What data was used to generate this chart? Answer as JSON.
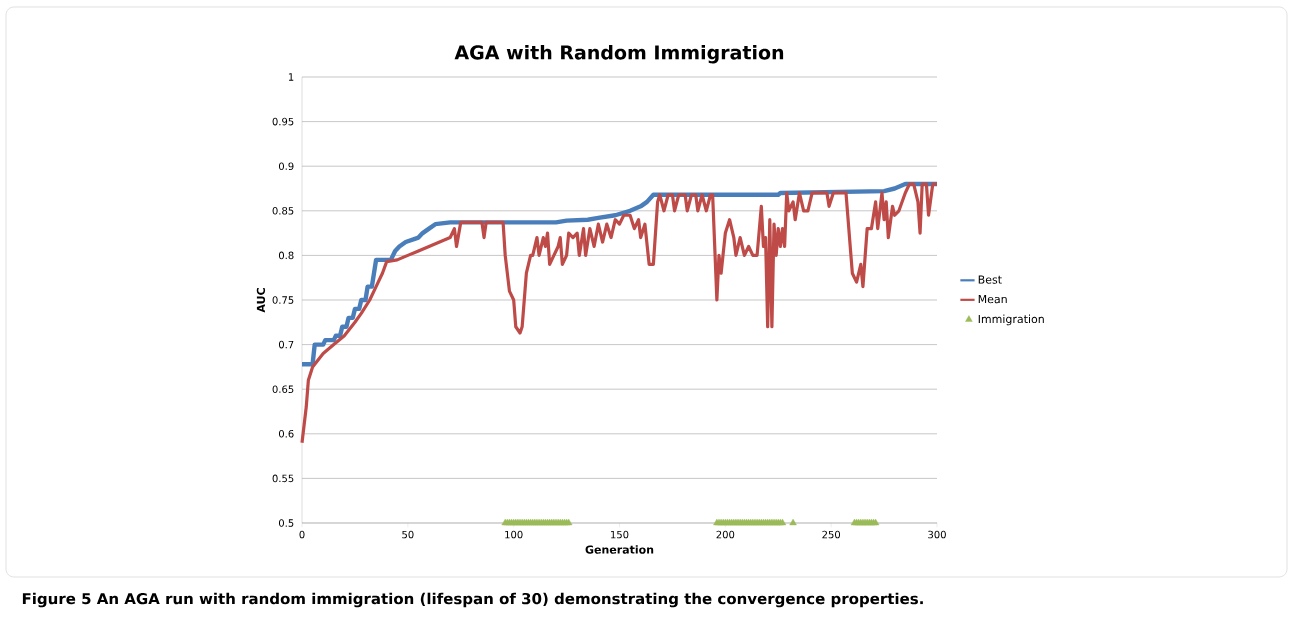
{
  "chart_data": {
    "type": "line",
    "title": "AGA with Random Immigration",
    "xlabel": "Generation",
    "ylabel": "AUC",
    "annotations": [
      "Figure 5 An AGA run with random immigration (lifespan of 30) demonstrating the convergence properties."
    ],
    "xlim": [
      0,
      300
    ],
    "xticks": [
      0,
      50,
      100,
      150,
      200,
      250,
      300
    ],
    "ylim": [
      0.5,
      1
    ],
    "yticks": [
      0.5,
      0.55,
      0.6,
      0.65,
      0.7,
      0.75,
      0.8,
      0.85,
      0.9,
      0.95,
      1
    ],
    "grid": "y",
    "legend": "right",
    "line_style": "solid",
    "marker": "none",
    "series": [
      {
        "name": "Best",
        "color": "#4a7ebb",
        "x": [
          0,
          5,
          6,
          10,
          11,
          15,
          16,
          18,
          19,
          21,
          22,
          24,
          25,
          27,
          28,
          30,
          31,
          33,
          34,
          35,
          42,
          43,
          44,
          46,
          49,
          55,
          57,
          60,
          63,
          70,
          120,
          125,
          135,
          140,
          148,
          155,
          160,
          163,
          166,
          225,
          226,
          275,
          280,
          285,
          300
        ],
        "values": [
          0.678,
          0.678,
          0.7,
          0.7,
          0.705,
          0.705,
          0.71,
          0.71,
          0.72,
          0.72,
          0.73,
          0.73,
          0.74,
          0.74,
          0.75,
          0.75,
          0.765,
          0.765,
          0.78,
          0.795,
          0.795,
          0.8,
          0.805,
          0.81,
          0.815,
          0.82,
          0.825,
          0.83,
          0.835,
          0.837,
          0.837,
          0.839,
          0.84,
          0.842,
          0.845,
          0.85,
          0.855,
          0.86,
          0.868,
          0.868,
          0.87,
          0.872,
          0.875,
          0.88,
          0.88
        ]
      },
      {
        "name": "Mean",
        "color": "#be4b48",
        "x": [
          0,
          2,
          3,
          5,
          10,
          15,
          20,
          25,
          28,
          32,
          35,
          38,
          40,
          45,
          50,
          55,
          60,
          65,
          70,
          72,
          73,
          75,
          85,
          86,
          87,
          95,
          96,
          98,
          100,
          101,
          103,
          104,
          106,
          108,
          109,
          111,
          112,
          114,
          115,
          116,
          117,
          119,
          121,
          122,
          123,
          125,
          126,
          128,
          130,
          131,
          133,
          134,
          136,
          138,
          140,
          142,
          144,
          146,
          148,
          150,
          152,
          155,
          157,
          159,
          160,
          162,
          164,
          166,
          168,
          169,
          171,
          173,
          175,
          176,
          178,
          181,
          182,
          184,
          186,
          187,
          189,
          191,
          193,
          194,
          196,
          197,
          198,
          200,
          202,
          204,
          205,
          207,
          209,
          211,
          213,
          215,
          217,
          218,
          219,
          220,
          221,
          222,
          223,
          224,
          225,
          226,
          227,
          228,
          229,
          230,
          232,
          233,
          235,
          237,
          239,
          241,
          248,
          249,
          251,
          257,
          260,
          262,
          264,
          265,
          267,
          269,
          271,
          272,
          274,
          275,
          276,
          277,
          279,
          280,
          282,
          285,
          287,
          289,
          291,
          292,
          293,
          295,
          296,
          298,
          300
        ],
        "values": [
          0.59,
          0.63,
          0.66,
          0.675,
          0.69,
          0.7,
          0.71,
          0.725,
          0.735,
          0.75,
          0.765,
          0.78,
          0.793,
          0.795,
          0.8,
          0.805,
          0.81,
          0.815,
          0.82,
          0.83,
          0.81,
          0.837,
          0.837,
          0.82,
          0.837,
          0.837,
          0.8,
          0.76,
          0.75,
          0.72,
          0.713,
          0.72,
          0.78,
          0.8,
          0.8,
          0.82,
          0.8,
          0.82,
          0.81,
          0.825,
          0.79,
          0.8,
          0.81,
          0.82,
          0.79,
          0.8,
          0.825,
          0.82,
          0.825,
          0.8,
          0.83,
          0.8,
          0.83,
          0.81,
          0.835,
          0.815,
          0.835,
          0.82,
          0.84,
          0.835,
          0.845,
          0.845,
          0.83,
          0.84,
          0.82,
          0.835,
          0.79,
          0.79,
          0.86,
          0.868,
          0.85,
          0.868,
          0.868,
          0.85,
          0.868,
          0.868,
          0.85,
          0.868,
          0.868,
          0.85,
          0.868,
          0.85,
          0.868,
          0.868,
          0.75,
          0.8,
          0.78,
          0.825,
          0.84,
          0.82,
          0.8,
          0.82,
          0.8,
          0.81,
          0.8,
          0.8,
          0.855,
          0.81,
          0.82,
          0.72,
          0.84,
          0.72,
          0.835,
          0.8,
          0.83,
          0.81,
          0.83,
          0.81,
          0.87,
          0.85,
          0.86,
          0.84,
          0.87,
          0.85,
          0.85,
          0.87,
          0.87,
          0.855,
          0.87,
          0.87,
          0.78,
          0.77,
          0.79,
          0.765,
          0.83,
          0.83,
          0.86,
          0.83,
          0.87,
          0.84,
          0.86,
          0.82,
          0.855,
          0.845,
          0.85,
          0.87,
          0.88,
          0.88,
          0.86,
          0.825,
          0.88,
          0.88,
          0.845,
          0.88,
          0.88
        ]
      },
      {
        "name": "Immigration",
        "color": "#9bbb59",
        "type": "scatter",
        "marker": "triangle",
        "x": [
          96,
          97,
          98,
          99,
          100,
          101,
          102,
          103,
          104,
          105,
          106,
          107,
          108,
          109,
          110,
          111,
          112,
          113,
          114,
          115,
          116,
          117,
          118,
          119,
          120,
          121,
          122,
          123,
          124,
          125,
          126,
          196,
          197,
          198,
          199,
          200,
          201,
          202,
          203,
          204,
          205,
          206,
          207,
          208,
          209,
          210,
          211,
          212,
          213,
          214,
          215,
          216,
          217,
          218,
          219,
          220,
          221,
          222,
          223,
          224,
          225,
          226,
          227,
          232,
          261,
          262,
          263,
          264,
          265,
          266,
          267,
          268,
          269,
          270,
          271
        ],
        "values": [
          0.5,
          0.5,
          0.5,
          0.5,
          0.5,
          0.5,
          0.5,
          0.5,
          0.5,
          0.5,
          0.5,
          0.5,
          0.5,
          0.5,
          0.5,
          0.5,
          0.5,
          0.5,
          0.5,
          0.5,
          0.5,
          0.5,
          0.5,
          0.5,
          0.5,
          0.5,
          0.5,
          0.5,
          0.5,
          0.5,
          0.5,
          0.5,
          0.5,
          0.5,
          0.5,
          0.5,
          0.5,
          0.5,
          0.5,
          0.5,
          0.5,
          0.5,
          0.5,
          0.5,
          0.5,
          0.5,
          0.5,
          0.5,
          0.5,
          0.5,
          0.5,
          0.5,
          0.5,
          0.5,
          0.5,
          0.5,
          0.5,
          0.5,
          0.5,
          0.5,
          0.5,
          0.5,
          0.5,
          0.5,
          0.5,
          0.5,
          0.5,
          0.5,
          0.5,
          0.5,
          0.5,
          0.5,
          0.5,
          0.5,
          0.5
        ]
      }
    ]
  }
}
